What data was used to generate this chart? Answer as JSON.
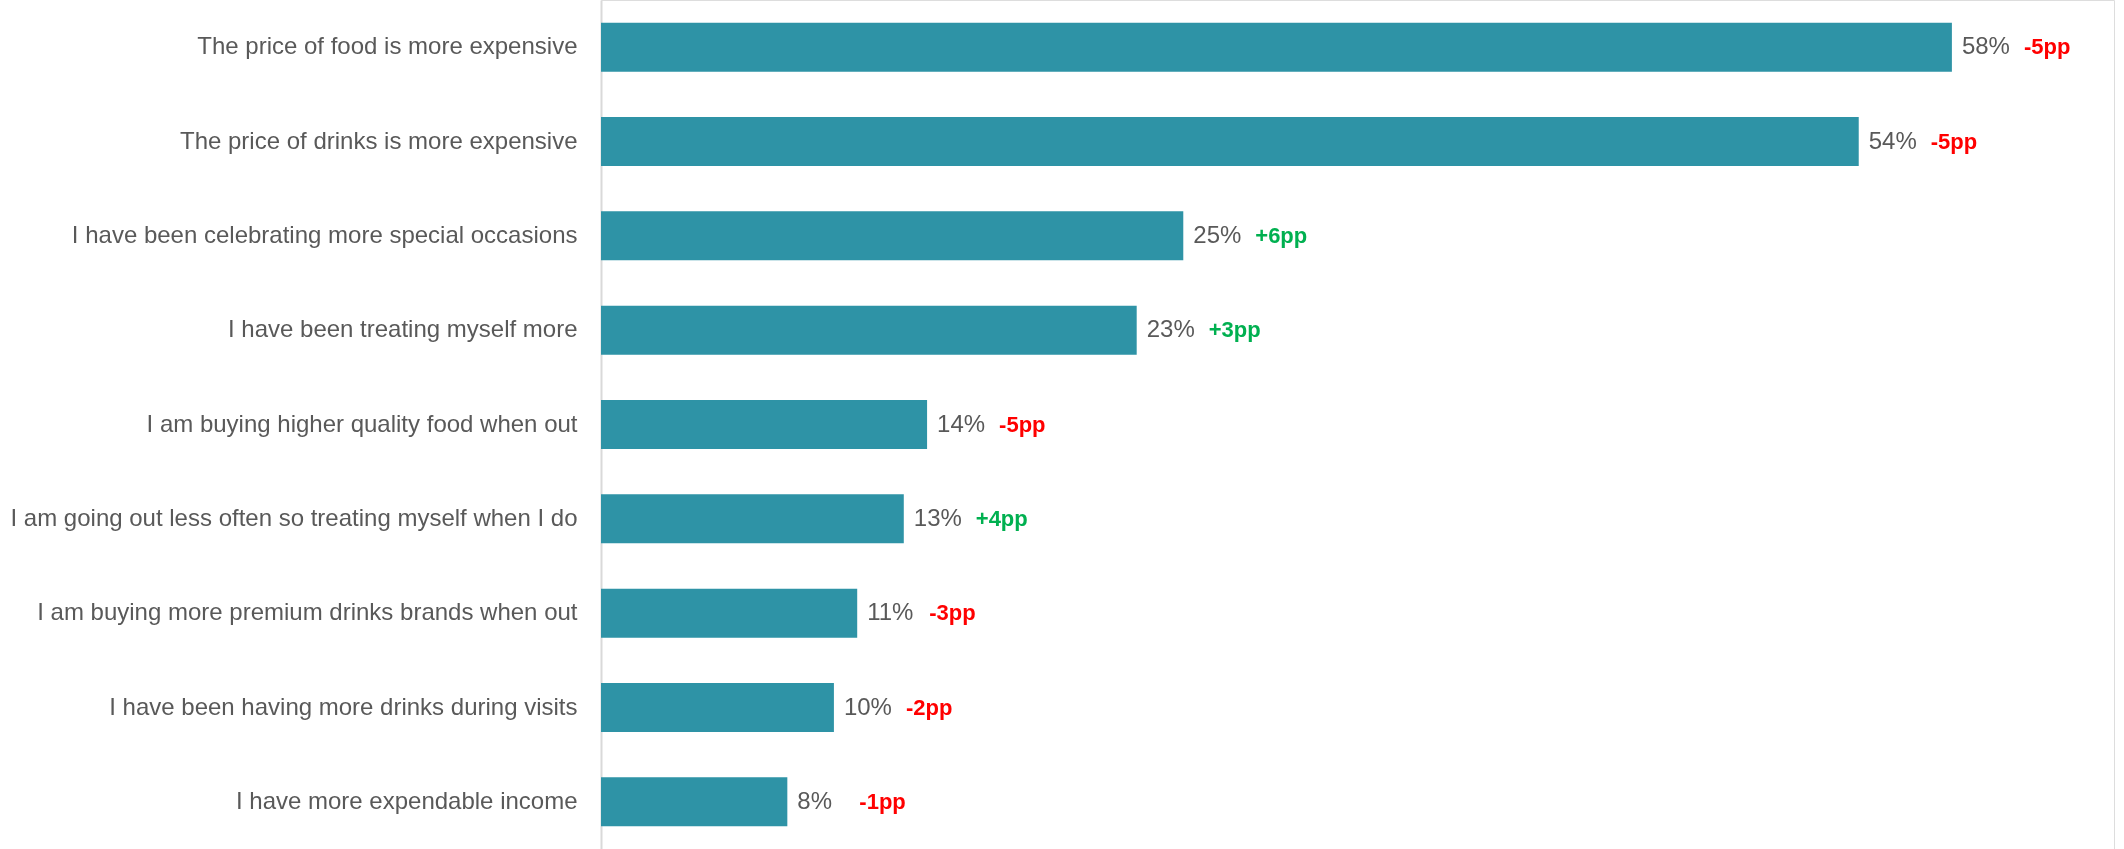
{
  "chart_data": {
    "type": "bar",
    "orientation": "horizontal",
    "categories": [
      "The price of food is more expensive",
      "The price of drinks is more expensive",
      "I have been celebrating more special occasions",
      "I have been treating myself more",
      "I am buying higher quality food when out",
      "I am going out less often so treating myself when I do",
      "I am buying more premium drinks brands when out",
      "I have been having more drinks during visits",
      "I have more expendable income"
    ],
    "values": [
      58,
      54,
      25,
      23,
      14,
      13,
      11,
      10,
      8
    ],
    "value_labels": [
      "58%",
      "54%",
      "25%",
      "23%",
      "14%",
      "13%",
      "11%",
      "10%",
      "8%"
    ],
    "color": "#2e93a6",
    "grid": false,
    "legend": false,
    "annotations": [
      "-5pp",
      "-5pp",
      "+6pp",
      "+3pp",
      "-5pp",
      "+4pp",
      "-3pp",
      "-2pp",
      "-1pp"
    ]
  }
}
